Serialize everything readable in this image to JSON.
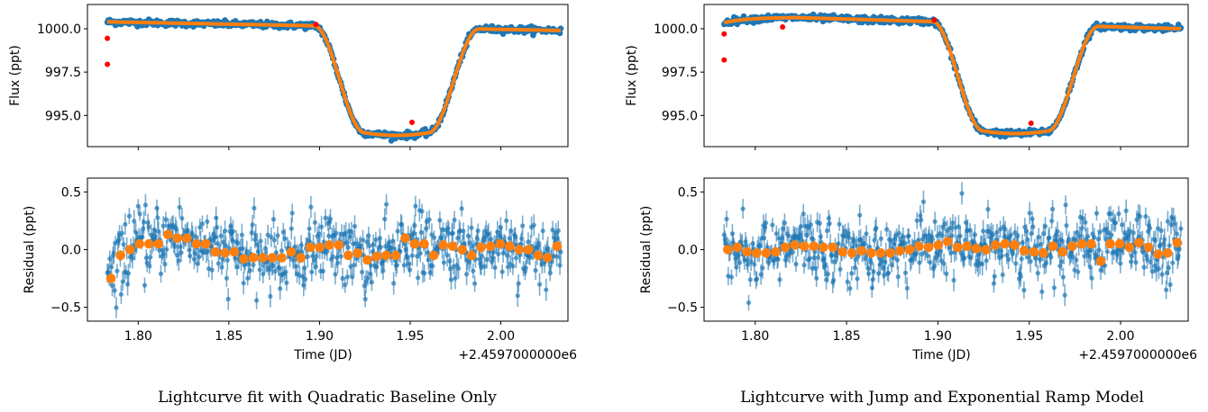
{
  "colors": {
    "data": "#1f77b4",
    "model": "#ff7f0e",
    "outlier": "#ff0000"
  },
  "chart_data": [
    {
      "type": "scatter",
      "caption": "Lightcurve fit with Quadratic Baseline Only",
      "top": {
        "ylabel": "Flux (ppt)",
        "ylim": [
          993.2,
          1001.4
        ],
        "yticks": [
          995.0,
          997.5,
          1000.0
        ],
        "yticklabels": [
          "995.0",
          "997.5",
          "1000.0"
        ],
        "transit_model": {
          "baseline_start": 1000.4,
          "baseline_end": 999.9,
          "ingress_start": 1.897,
          "ingress_end": 1.925,
          "egress_start": 1.96,
          "egress_end": 1.988,
          "depth_level": 993.85
        },
        "outliers": [
          {
            "x": 1.783,
            "y": 999.45
          },
          {
            "x": 1.783,
            "y": 997.95
          },
          {
            "x": 1.898,
            "y": 1000.25
          },
          {
            "x": 1.951,
            "y": 994.6
          }
        ]
      },
      "bottom": {
        "ylabel": "Residual (ppt)",
        "ylim": [
          -0.62,
          0.62
        ],
        "yticks": [
          -0.5,
          0.0,
          0.5
        ],
        "yticklabels": [
          "−0.5",
          "0.0",
          "0.5"
        ],
        "binned_residuals": [
          -0.25,
          -0.05,
          0.0,
          0.05,
          0.05,
          0.05,
          0.13,
          0.1,
          0.1,
          0.05,
          0.05,
          -0.02,
          -0.03,
          -0.02,
          -0.08,
          -0.07,
          -0.07,
          -0.07,
          -0.07,
          -0.02,
          -0.07,
          0.02,
          0.02,
          0.04,
          0.04,
          -0.05,
          -0.03,
          -0.09,
          -0.06,
          -0.05,
          -0.05,
          0.1,
          0.05,
          0.05,
          -0.05,
          0.04,
          0.03,
          0.0,
          -0.05,
          0.02,
          0.03,
          0.05,
          0.03,
          0.0,
          0.0,
          -0.05,
          -0.07,
          0.03
        ]
      },
      "x": {
        "xlabel": "Time (JD)",
        "xlim": [
          1.772,
          2.037
        ],
        "xticks": [
          1.8,
          1.85,
          1.9,
          1.95,
          2.0
        ],
        "xticklabels": [
          "1.80",
          "1.85",
          "1.90",
          "1.95",
          "2.00"
        ],
        "offset_text": "+2.4597000000e6",
        "data_range": [
          1.783,
          2.033
        ]
      }
    },
    {
      "type": "scatter",
      "caption": "Lightcurve with Jump and Exponential Ramp Model",
      "top": {
        "ylabel": "Flux (ppt)",
        "ylim": [
          993.2,
          1001.4
        ],
        "yticks": [
          995.0,
          997.5,
          1000.0
        ],
        "yticklabels": [
          "995.0",
          "997.5",
          "1000.0"
        ],
        "transit_model": {
          "baseline_start": 1000.35,
          "baseline_end": 1000.0,
          "ramp_peak": 1000.65,
          "ingress_start": 1.897,
          "ingress_end": 1.925,
          "egress_start": 1.96,
          "egress_end": 1.988,
          "depth_level": 993.95
        },
        "outliers": [
          {
            "x": 1.783,
            "y": 999.7
          },
          {
            "x": 1.783,
            "y": 998.2
          },
          {
            "x": 1.815,
            "y": 1000.1
          },
          {
            "x": 1.898,
            "y": 1000.5
          },
          {
            "x": 1.951,
            "y": 994.55
          }
        ]
      },
      "bottom": {
        "ylabel": "Residual (ppt)",
        "ylim": [
          -0.62,
          0.62
        ],
        "yticks": [
          -0.5,
          0.0,
          0.5
        ],
        "yticklabels": [
          "−0.5",
          "0.0",
          "0.5"
        ],
        "binned_residuals": [
          0.0,
          0.02,
          -0.02,
          -0.03,
          -0.03,
          -0.02,
          0.02,
          0.04,
          0.03,
          0.03,
          0.02,
          0.02,
          -0.02,
          -0.03,
          -0.01,
          -0.03,
          -0.03,
          -0.03,
          -0.01,
          0.0,
          0.03,
          0.02,
          0.04,
          0.07,
          0.02,
          0.03,
          0.01,
          0.0,
          0.04,
          0.05,
          0.04,
          -0.01,
          -0.02,
          -0.03,
          0.03,
          -0.02,
          0.03,
          0.05,
          0.05,
          -0.1,
          0.05,
          0.05,
          0.02,
          0.06,
          0.02,
          -0.04,
          -0.03,
          0.06
        ]
      },
      "x": {
        "xlabel": "Time (JD)",
        "xlim": [
          1.772,
          2.037
        ],
        "xticks": [
          1.8,
          1.85,
          1.9,
          1.95,
          2.0
        ],
        "xticklabels": [
          "1.80",
          "1.85",
          "1.90",
          "1.95",
          "2.00"
        ],
        "offset_text": "+2.4597000000e6",
        "data_range": [
          1.783,
          2.033
        ]
      }
    }
  ]
}
